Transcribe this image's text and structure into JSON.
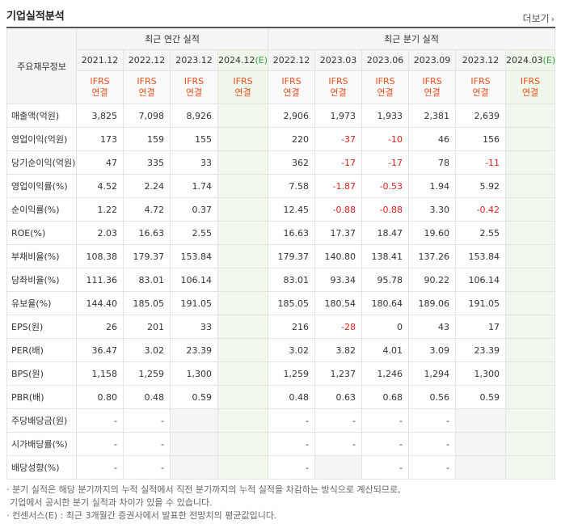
{
  "section_title": "기업실적분석",
  "more_label": "더보기",
  "more_icon": "chevron-right-icon",
  "corner_label": "주요재무정보",
  "groups": {
    "annual": "최근 연간 실적",
    "quarter": "최근 분기 실적"
  },
  "periods": [
    "2021.12",
    "2022.12",
    "2023.12",
    "2024.12(E)",
    "2022.12",
    "2023.03",
    "2023.06",
    "2023.09",
    "2023.12",
    "2024.03(E)"
  ],
  "standard_top": "IFRS",
  "standard_bottom": "연결",
  "rows": [
    {
      "label": "매출액(억원)",
      "values": [
        "3,825",
        "7,098",
        "8,926",
        "",
        "2,906",
        "1,973",
        "1,933",
        "2,381",
        "2,639",
        ""
      ]
    },
    {
      "label": "영업이익(억원)",
      "values": [
        "173",
        "159",
        "155",
        "",
        "220",
        "-37",
        "-10",
        "46",
        "156",
        ""
      ]
    },
    {
      "label": "당기순이익(억원)",
      "values": [
        "47",
        "335",
        "33",
        "",
        "362",
        "-17",
        "-17",
        "78",
        "-11",
        ""
      ]
    },
    {
      "label": "영업이익률(%)",
      "values": [
        "4.52",
        "2.24",
        "1.74",
        "",
        "7.58",
        "-1.87",
        "-0.53",
        "1.94",
        "5.92",
        ""
      ]
    },
    {
      "label": "순이익률(%)",
      "values": [
        "1.22",
        "4.72",
        "0.37",
        "",
        "12.45",
        "-0.88",
        "-0.88",
        "3.30",
        "-0.42",
        ""
      ]
    },
    {
      "label": "ROE(%)",
      "values": [
        "2.03",
        "16.63",
        "2.55",
        "",
        "16.63",
        "17.37",
        "18.47",
        "19.60",
        "2.55",
        ""
      ]
    },
    {
      "label": "부채비율(%)",
      "values": [
        "108.38",
        "179.37",
        "153.84",
        "",
        "179.37",
        "140.80",
        "138.41",
        "137.26",
        "153.84",
        ""
      ]
    },
    {
      "label": "당좌비율(%)",
      "values": [
        "111.36",
        "83.01",
        "106.14",
        "",
        "83.01",
        "93.34",
        "95.78",
        "90.22",
        "106.14",
        ""
      ]
    },
    {
      "label": "유보율(%)",
      "values": [
        "144.40",
        "185.05",
        "191.05",
        "",
        "185.05",
        "180.54",
        "180.64",
        "189.06",
        "191.05",
        ""
      ]
    },
    {
      "label": "EPS(원)",
      "values": [
        "26",
        "201",
        "33",
        "",
        "216",
        "-28",
        "0",
        "43",
        "17",
        ""
      ]
    },
    {
      "label": "PER(배)",
      "values": [
        "36.47",
        "3.02",
        "23.39",
        "",
        "3.02",
        "3.82",
        "4.01",
        "3.09",
        "23.39",
        ""
      ]
    },
    {
      "label": "BPS(원)",
      "values": [
        "1,158",
        "1,259",
        "1,300",
        "",
        "1,259",
        "1,237",
        "1,246",
        "1,294",
        "1,300",
        ""
      ]
    },
    {
      "label": "PBR(배)",
      "values": [
        "0.80",
        "0.48",
        "0.59",
        "",
        "0.48",
        "0.63",
        "0.68",
        "0.56",
        "0.59",
        ""
      ]
    },
    {
      "label": "주당배당금(원)",
      "values": [
        "-",
        "-",
        "",
        "",
        "-",
        "-",
        "-",
        "-",
        "",
        ""
      ]
    },
    {
      "label": "시가배당률(%)",
      "values": [
        "-",
        "-",
        "",
        "",
        "-",
        "-",
        "-",
        "-",
        "",
        ""
      ]
    },
    {
      "label": "배당성향(%)",
      "values": [
        "-",
        "-",
        "",
        "",
        "-",
        "",
        "-",
        "-",
        "",
        ""
      ]
    }
  ],
  "notes": [
    "· 분기 실적은 해당 분기까지의 누적 실적에서 직전 분기까지의 누적 실적을 차감하는 방식으로 계산되므로,",
    "  기업에서 공시한 분기 실적과 차이가 있을 수 있습니다.",
    "· 컨센서스(E) : 최근 3개월간 증권사에서 발표한 전망치의 평균값입니다."
  ],
  "colors": {
    "negative": "#e0201f",
    "ifrs": "#e9501f",
    "estimate_bg": "#f0f8ee",
    "estimate_mark": "#38a14a"
  }
}
